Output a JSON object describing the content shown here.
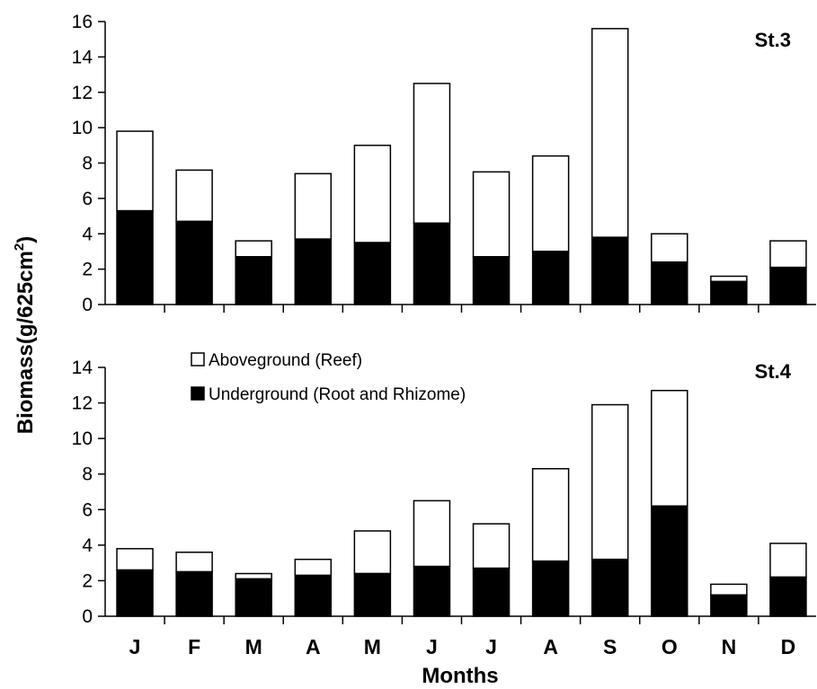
{
  "chart_data": [
    {
      "type": "bar",
      "stacked": true,
      "panel_label": "St.3",
      "categories": [
        "J",
        "F",
        "M",
        "A",
        "M",
        "J",
        "J",
        "A",
        "S",
        "O",
        "N",
        "D"
      ],
      "series": [
        {
          "name": "Underground (Root and Rhizome)",
          "color": "#000000",
          "values": [
            5.3,
            4.7,
            2.7,
            3.7,
            3.5,
            4.6,
            2.7,
            3.0,
            3.8,
            2.4,
            1.3,
            2.1
          ]
        },
        {
          "name": "Aboveground (Reef)",
          "color": "#ffffff",
          "values": [
            4.5,
            2.9,
            0.9,
            3.7,
            5.5,
            7.9,
            4.8,
            5.4,
            11.8,
            1.6,
            0.3,
            1.5
          ]
        }
      ],
      "ylim": [
        0,
        16
      ],
      "yticks": [
        0,
        2,
        4,
        6,
        8,
        10,
        12,
        14,
        16
      ]
    },
    {
      "type": "bar",
      "stacked": true,
      "panel_label": "St.4",
      "categories": [
        "J",
        "F",
        "M",
        "A",
        "M",
        "J",
        "J",
        "A",
        "S",
        "O",
        "N",
        "D"
      ],
      "series": [
        {
          "name": "Underground (Root and Rhizome)",
          "color": "#000000",
          "values": [
            2.6,
            2.5,
            2.1,
            2.3,
            2.4,
            2.8,
            2.7,
            3.1,
            3.2,
            6.2,
            1.2,
            2.2
          ]
        },
        {
          "name": "Aboveground (Reef)",
          "color": "#ffffff",
          "values": [
            1.2,
            1.1,
            0.3,
            0.9,
            2.4,
            3.7,
            2.5,
            5.2,
            8.7,
            6.5,
            0.6,
            1.9
          ]
        }
      ],
      "ylim": [
        0,
        14
      ],
      "yticks": [
        0,
        2,
        4,
        6,
        8,
        10,
        12,
        14
      ]
    }
  ],
  "ylabel": "Biomass(g/625cm²)",
  "ylabel_main": "Biomass(g/625cm",
  "ylabel_sup": "2",
  "ylabel_end": ")",
  "xlabel": "Months",
  "legend": {
    "placement": "top-left of lower panel",
    "items": [
      {
        "label": "Aboveground (Reef)",
        "fill": "#ffffff"
      },
      {
        "label": "Underground (Root and Rhizome)",
        "fill": "#000000"
      }
    ]
  }
}
